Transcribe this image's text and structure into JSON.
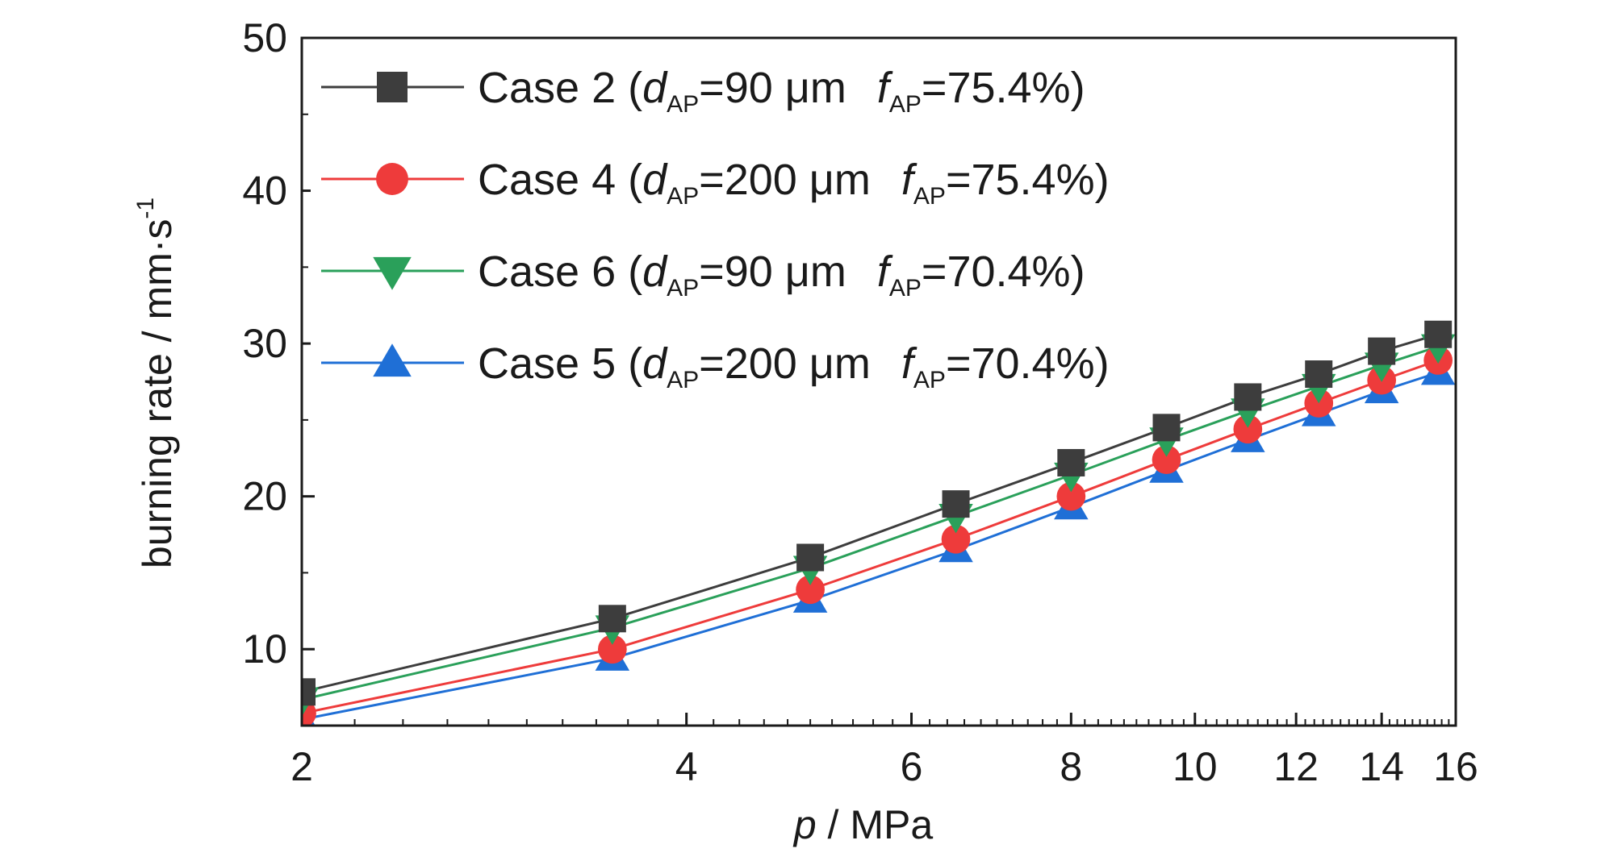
{
  "chart_data": {
    "type": "line",
    "xscale": "log",
    "xlim": [
      2,
      16
    ],
    "ylim": [
      5,
      50
    ],
    "xticks": [
      2,
      4,
      6,
      8,
      10,
      12,
      14,
      16
    ],
    "yticks": [
      10,
      20,
      30,
      40,
      50
    ],
    "xlabel": {
      "italic": "p",
      "rest": " / MPa"
    },
    "ylabel": {
      "text": "burning rate / mm·s",
      "sup": "-1"
    },
    "grid": false,
    "legend_position": "top-left",
    "x": [
      2,
      3.5,
      5,
      6.5,
      8,
      9.5,
      11,
      12.5,
      14,
      15.5
    ],
    "series": [
      {
        "name": "Case 2",
        "legend": {
          "lead": "Case 2 (",
          "d": "d",
          "d_sub": "AP",
          "d_val": "=90 μm",
          "f": "f",
          "f_sub": "AP",
          "f_val": "=75.4%)"
        },
        "color": "#3d3d3d",
        "marker": "square",
        "values": [
          7.2,
          12.0,
          16.0,
          19.5,
          22.2,
          24.5,
          26.5,
          28.0,
          29.5,
          30.6
        ]
      },
      {
        "name": "Case 4",
        "legend": {
          "lead": "Case 4 (",
          "d": "d",
          "d_sub": "AP",
          "d_val": "=200 μm",
          "f": "f",
          "f_sub": "AP",
          "f_val": "=75.4%)"
        },
        "color": "#ee3b3b",
        "marker": "circle",
        "values": [
          5.8,
          10.0,
          13.9,
          17.2,
          20.0,
          22.4,
          24.4,
          26.1,
          27.6,
          28.9
        ]
      },
      {
        "name": "Case 6",
        "legend": {
          "lead": "Case 6 (",
          "d": "d",
          "d_sub": "AP",
          "d_val": "=90 μm",
          "f": "f",
          "f_sub": "AP",
          "f_val": "=70.4%)"
        },
        "color": "#2aa05a",
        "marker": "triangle-down",
        "values": [
          6.7,
          11.4,
          15.3,
          18.7,
          21.4,
          23.7,
          25.6,
          27.2,
          28.6,
          29.8
        ]
      },
      {
        "name": "Case 5",
        "legend": {
          "lead": "Case 5 (",
          "d": "d",
          "d_sub": "AP",
          "d_val": "=200 μm",
          "f": "f",
          "f_sub": "AP",
          "f_val": "=70.4%)"
        },
        "color": "#1f6fd6",
        "marker": "triangle-up",
        "values": [
          5.4,
          9.4,
          13.2,
          16.5,
          19.3,
          21.7,
          23.7,
          25.4,
          26.9,
          28.1
        ]
      }
    ]
  }
}
